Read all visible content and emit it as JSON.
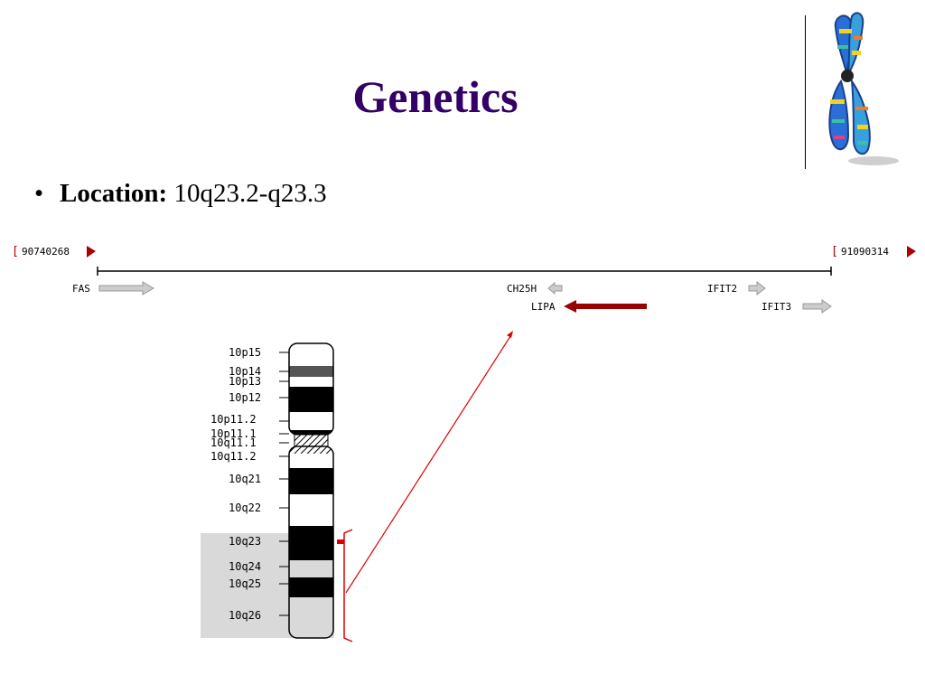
{
  "slide": {
    "title": "Genetics",
    "bullet": {
      "label": "Location:",
      "value": "10q23.2-q23.3"
    }
  },
  "colors": {
    "title": "#330066",
    "marker_red": "#aa0000",
    "lipa_arrow": "#990000",
    "gene_arrow_gray": "#aaaaaa",
    "highlight_region": "#d9d9d9",
    "pointer_red": "#dd0000"
  },
  "locus": {
    "start_coord": "90740268",
    "end_coord": "91090314",
    "genes": [
      {
        "name": "FAS",
        "strand": "+"
      },
      {
        "name": "CH25H",
        "strand": "-"
      },
      {
        "name": "LIPA",
        "strand": "-",
        "highlighted": true
      },
      {
        "name": "IFIT2",
        "strand": "+"
      },
      {
        "name": "IFIT3",
        "strand": "+"
      }
    ]
  },
  "ideogram": {
    "chromosome": "10",
    "bands": [
      {
        "name": "10p15",
        "stain": "white"
      },
      {
        "name": "10p14",
        "stain": "dark"
      },
      {
        "name": "10p13",
        "stain": "white"
      },
      {
        "name": "10p12",
        "stain": "black"
      },
      {
        "name": "10p11.2",
        "stain": "white"
      },
      {
        "name": "10p11.1",
        "stain": "black"
      },
      {
        "name": "10q11.1",
        "stain": "hatched"
      },
      {
        "name": "10q11.2",
        "stain": "white"
      },
      {
        "name": "10q21",
        "stain": "black"
      },
      {
        "name": "10q22",
        "stain": "white"
      },
      {
        "name": "10q23",
        "stain": "black"
      },
      {
        "name": "10q24",
        "stain": "light"
      },
      {
        "name": "10q25",
        "stain": "black"
      },
      {
        "name": "10q26",
        "stain": "light"
      }
    ],
    "highlighted_bands": [
      "10q23",
      "10q24",
      "10q25",
      "10q26"
    ]
  }
}
